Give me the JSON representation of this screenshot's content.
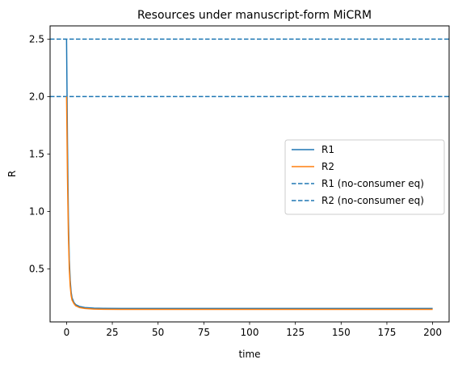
{
  "chart_data": {
    "type": "line",
    "title": "Resources under manuscript-form MiCRM",
    "xlabel": "time",
    "ylabel": "R",
    "xlim": [
      -9,
      209
    ],
    "ylim": [
      0.04,
      2.615
    ],
    "x_ticks": [
      0,
      25,
      50,
      75,
      100,
      125,
      150,
      175,
      200
    ],
    "x_tick_labels": [
      "0",
      "25",
      "50",
      "75",
      "100",
      "125",
      "150",
      "175",
      "200"
    ],
    "y_ticks": [
      0.5,
      1.0,
      1.5,
      2.0,
      2.5
    ],
    "y_tick_labels": [
      "0.5",
      "1.0",
      "1.5",
      "2.0",
      "2.5"
    ],
    "grid": false,
    "legend_position": "center-right",
    "series": [
      {
        "name": "R1",
        "style": "solid",
        "color": "#1f77b4",
        "x": [
          0,
          0.5,
          1,
          1.5,
          2,
          2.5,
          3,
          4,
          5,
          7,
          10,
          15,
          20,
          30,
          50,
          100,
          150,
          200
        ],
        "y": [
          2.5,
          1.6,
          0.95,
          0.58,
          0.4,
          0.3,
          0.25,
          0.21,
          0.19,
          0.175,
          0.165,
          0.16,
          0.158,
          0.157,
          0.157,
          0.157,
          0.157,
          0.157
        ]
      },
      {
        "name": "R2",
        "style": "solid",
        "color": "#ff7f0e",
        "x": [
          0,
          0.5,
          1,
          1.5,
          2,
          2.5,
          3,
          4,
          5,
          7,
          10,
          15,
          20,
          30,
          50,
          100,
          150,
          200
        ],
        "y": [
          2.0,
          1.3,
          0.8,
          0.5,
          0.35,
          0.27,
          0.23,
          0.2,
          0.18,
          0.165,
          0.157,
          0.152,
          0.15,
          0.149,
          0.149,
          0.149,
          0.149,
          0.149
        ]
      }
    ],
    "reference_lines": [
      {
        "name": "R1 (no-consumer eq)",
        "y": 2.5,
        "style": "dashed",
        "color": "#1f77b4"
      },
      {
        "name": "R2 (no-consumer eq)",
        "y": 2.0,
        "style": "dashed",
        "color": "#1f77b4"
      }
    ]
  }
}
